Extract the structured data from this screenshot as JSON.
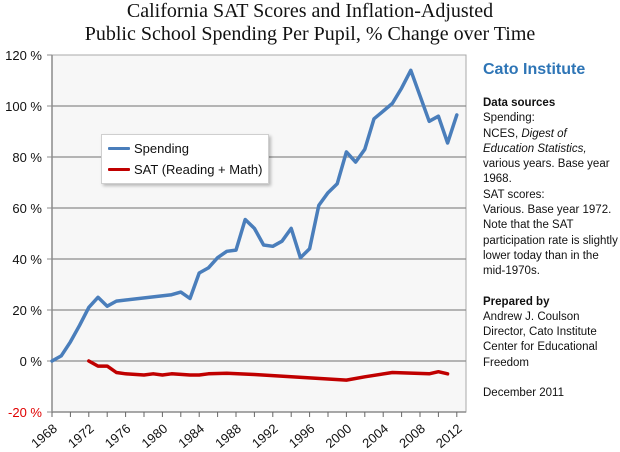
{
  "chart_data": {
    "type": "line",
    "title": "California SAT Scores and Inflation-Adjusted Public School Spending Per Pupil, % Change over Time",
    "title_lines": [
      "California SAT Scores and Inflation-Adjusted",
      "Public School Spending Per Pupil, % Change over Time"
    ],
    "xlabel": "",
    "ylabel": "",
    "xlim": [
      1968,
      2013
    ],
    "ylim": [
      -20,
      120
    ],
    "grid": true,
    "legend_position": "upper-left",
    "x_ticks": [
      "1968",
      "1972",
      "1976",
      "1980",
      "1984",
      "1988",
      "1992",
      "1996",
      "2000",
      "2004",
      "2008",
      "2012"
    ],
    "y_ticks": [
      {
        "value": 120,
        "label": "120 %"
      },
      {
        "value": 100,
        "label": "100 %"
      },
      {
        "value": 80,
        "label": "80 %"
      },
      {
        "value": 60,
        "label": "60 %"
      },
      {
        "value": 40,
        "label": "40 %"
      },
      {
        "value": 20,
        "label": "20 %"
      },
      {
        "value": 0,
        "label": "0 %"
      },
      {
        "value": -20,
        "label": "-20 %",
        "color": "#e00000"
      }
    ],
    "series": [
      {
        "name": "Spending",
        "color": "#4a7ebb",
        "x": [
          1968,
          1969,
          1970,
          1971,
          1972,
          1973,
          1974,
          1975,
          1981,
          1982,
          1983,
          1984,
          1985,
          1986,
          1987,
          1988,
          1989,
          1990,
          1991,
          1992,
          1993,
          1994,
          1995,
          1996,
          1997,
          1998,
          1999,
          2000,
          2001,
          2002,
          2003,
          2004,
          2005,
          2006,
          2007,
          2008,
          2009,
          2010,
          2011,
          2012
        ],
        "values": [
          0,
          2,
          7.5,
          14,
          21,
          25,
          21.5,
          23.5,
          26,
          27,
          24.5,
          34.5,
          36.5,
          40.5,
          43,
          43.5,
          55.5,
          52,
          45.5,
          45,
          47,
          52,
          40.5,
          44,
          61,
          66,
          69.5,
          82,
          78,
          83,
          95,
          98,
          101,
          107,
          114,
          104,
          94,
          96,
          85.5,
          96.5
        ]
      },
      {
        "name": "SAT (Reading + Math)",
        "color": "#c00000",
        "x": [
          1972,
          1973,
          1974,
          1975,
          1976,
          1978,
          1979,
          1980,
          1981,
          1983,
          1984,
          1985,
          1987,
          1990,
          2000,
          2002,
          2005,
          2009,
          2010,
          2011
        ],
        "values": [
          0,
          -2,
          -2,
          -4.5,
          -5,
          -5.5,
          -5,
          -5.5,
          -5,
          -5.5,
          -5.5,
          -5,
          -4.8,
          -5.3,
          -7.5,
          -6.2,
          -4.5,
          -5,
          -4.2,
          -5
        ]
      }
    ]
  },
  "sidebar": {
    "org": "Cato Institute",
    "sources_heading": "Data sources",
    "spending_label": "Spending:",
    "spending_src_1": "NCES, ",
    "spending_src_italic": "Digest of Education Statistics,",
    "spending_src_2": "various years.  Base year 1968.",
    "sat_label": "SAT scores:",
    "sat_src": "Various. Base year 1972. Note that the SAT participation rate is slightly lower today than in the mid-1970s.",
    "prepared_heading": "Prepared by",
    "author": "Andrew J. Coulson",
    "author_title": "Director, Cato Institute Center for Educational Freedom",
    "date": "December 2011"
  }
}
